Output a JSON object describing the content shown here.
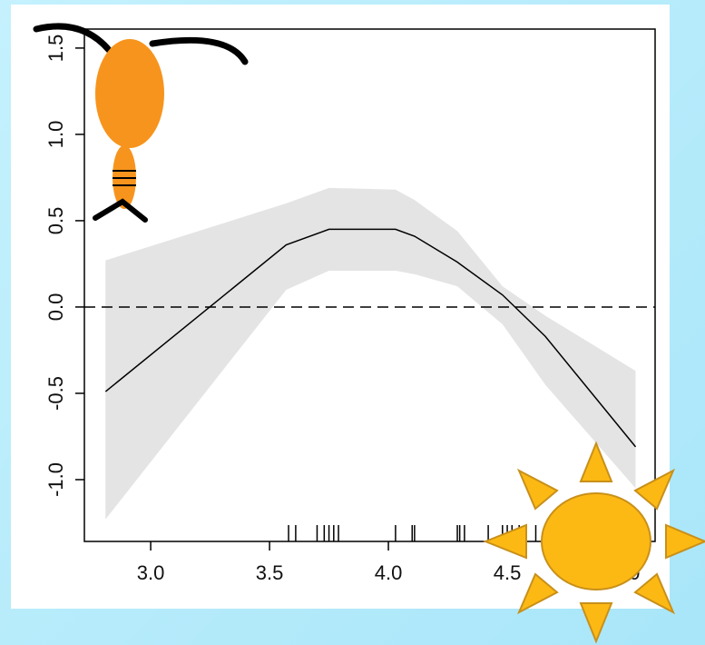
{
  "chart_data": {
    "type": "line",
    "x": [
      2.81,
      3.57,
      3.75,
      4.03,
      4.11,
      4.29,
      4.48,
      4.66,
      5.04
    ],
    "values": [
      -0.49,
      0.36,
      0.45,
      0.45,
      0.41,
      0.26,
      0.07,
      -0.17,
      -0.81
    ],
    "band": {
      "upper": [
        0.27,
        0.6,
        0.69,
        0.68,
        0.62,
        0.44,
        0.12,
        -0.05,
        -0.37
      ],
      "lower": [
        -1.23,
        0.1,
        0.21,
        0.21,
        0.19,
        0.12,
        -0.1,
        -0.45,
        -1.05
      ],
      "color": "#e4e4e4"
    },
    "color": "#000000",
    "hline": 0,
    "rug": [
      3.58,
      3.61,
      3.7,
      3.73,
      3.75,
      3.77,
      3.79,
      4.03,
      4.1,
      4.11,
      4.29,
      4.3,
      4.32,
      4.42,
      4.48,
      4.5,
      4.52,
      4.55,
      4.62
    ],
    "xlim": [
      2.721,
      5.122
    ],
    "ylim": [
      -1.358,
      1.61
    ],
    "xticks": [
      {
        "value": 3,
        "label": "3.0"
      },
      3.5,
      {
        "value": 4,
        "label": "4.0"
      },
      4.5,
      {
        "value": 5,
        "label": "5.0"
      }
    ],
    "yticks": [
      {
        "value": -1,
        "label": "-1.0"
      },
      -0.5,
      {
        "value": 0,
        "label": "0.0"
      },
      0.5,
      {
        "value": 1,
        "label": "1.0"
      },
      1.5
    ]
  }
}
